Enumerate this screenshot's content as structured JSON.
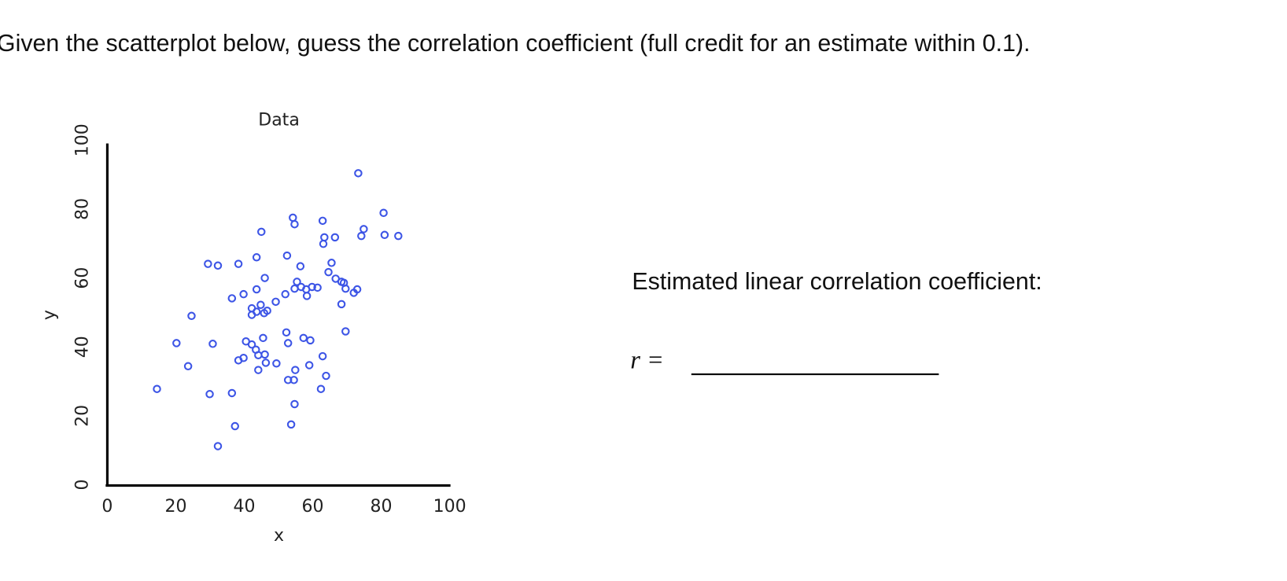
{
  "question": "Given the scatterplot below, guess the correlation coefficient (full credit for an estimate within 0.1).",
  "chart_data": {
    "type": "scatter",
    "title": "Data",
    "xlabel": "x",
    "ylabel": "y",
    "color": "#3d55e6",
    "xlim": [
      0,
      100
    ],
    "ylim": [
      0,
      100
    ],
    "xticks": [
      0,
      20,
      40,
      60,
      80,
      100
    ],
    "yticks": [
      0,
      20,
      40,
      60,
      80,
      100
    ],
    "x": [
      73.3,
      80.7,
      74.9,
      74.2,
      81,
      85,
      54.2,
      54.7,
      62.9,
      45,
      63.4,
      66.5,
      63.1,
      43.6,
      52.5,
      29.4,
      32.3,
      38.3,
      56.4,
      65.5,
      64.6,
      66.7,
      69.1,
      69.6,
      72,
      73,
      46,
      55.4,
      54.7,
      56.6,
      58.1,
      59.8,
      61.4,
      58.3,
      43.6,
      39.8,
      36.4,
      52,
      49.2,
      44.8,
      42.2,
      42.2,
      45.8,
      46.7,
      43.6,
      24.6,
      68.4,
      68.4,
      69.6,
      52.3,
      52.8,
      57.3,
      59.3,
      45.5,
      20.2,
      30.8,
      40.5,
      42.2,
      43.4,
      46,
      44.1,
      46.3,
      44.1,
      39.8,
      38.3,
      49.4,
      62.9,
      59,
      54.9,
      23.6,
      63.9,
      62.4,
      52.8,
      54.5,
      14.5,
      29.9,
      36.4,
      54.7,
      37.3,
      53.7,
      32.3
    ],
    "y": [
      90.4,
      78.9,
      74.2,
      72.2,
      72.5,
      72.2,
      77.5,
      75.6,
      76.6,
      73.4,
      71.8,
      71.8,
      69.9,
      66,
      66.5,
      64.1,
      63.6,
      64.1,
      63.4,
      64.4,
      61.7,
      59.8,
      58.6,
      56.9,
      55.7,
      56.7,
      60,
      58.9,
      56.9,
      57.4,
      56.7,
      57.4,
      57.2,
      54.8,
      56.7,
      55.3,
      54.1,
      55.3,
      53.1,
      52.2,
      51.2,
      49.3,
      49.8,
      50.5,
      50.2,
      49,
      58.9,
      52.4,
      44.5,
      44.2,
      41.1,
      42.6,
      41.9,
      42.6,
      41.1,
      40.9,
      41.6,
      40.7,
      39.2,
      37.8,
      37.6,
      35.4,
      33.3,
      36.8,
      36.1,
      35.2,
      37.3,
      34.7,
      33.3,
      34.4,
      31.6,
      27.8,
      30.4,
      30.4,
      27.8,
      26.3,
      26.6,
      23.4,
      17,
      17.5,
      11.2
    ]
  },
  "prompt": "Estimated linear correlation coefficient:",
  "answer_label": "r ="
}
